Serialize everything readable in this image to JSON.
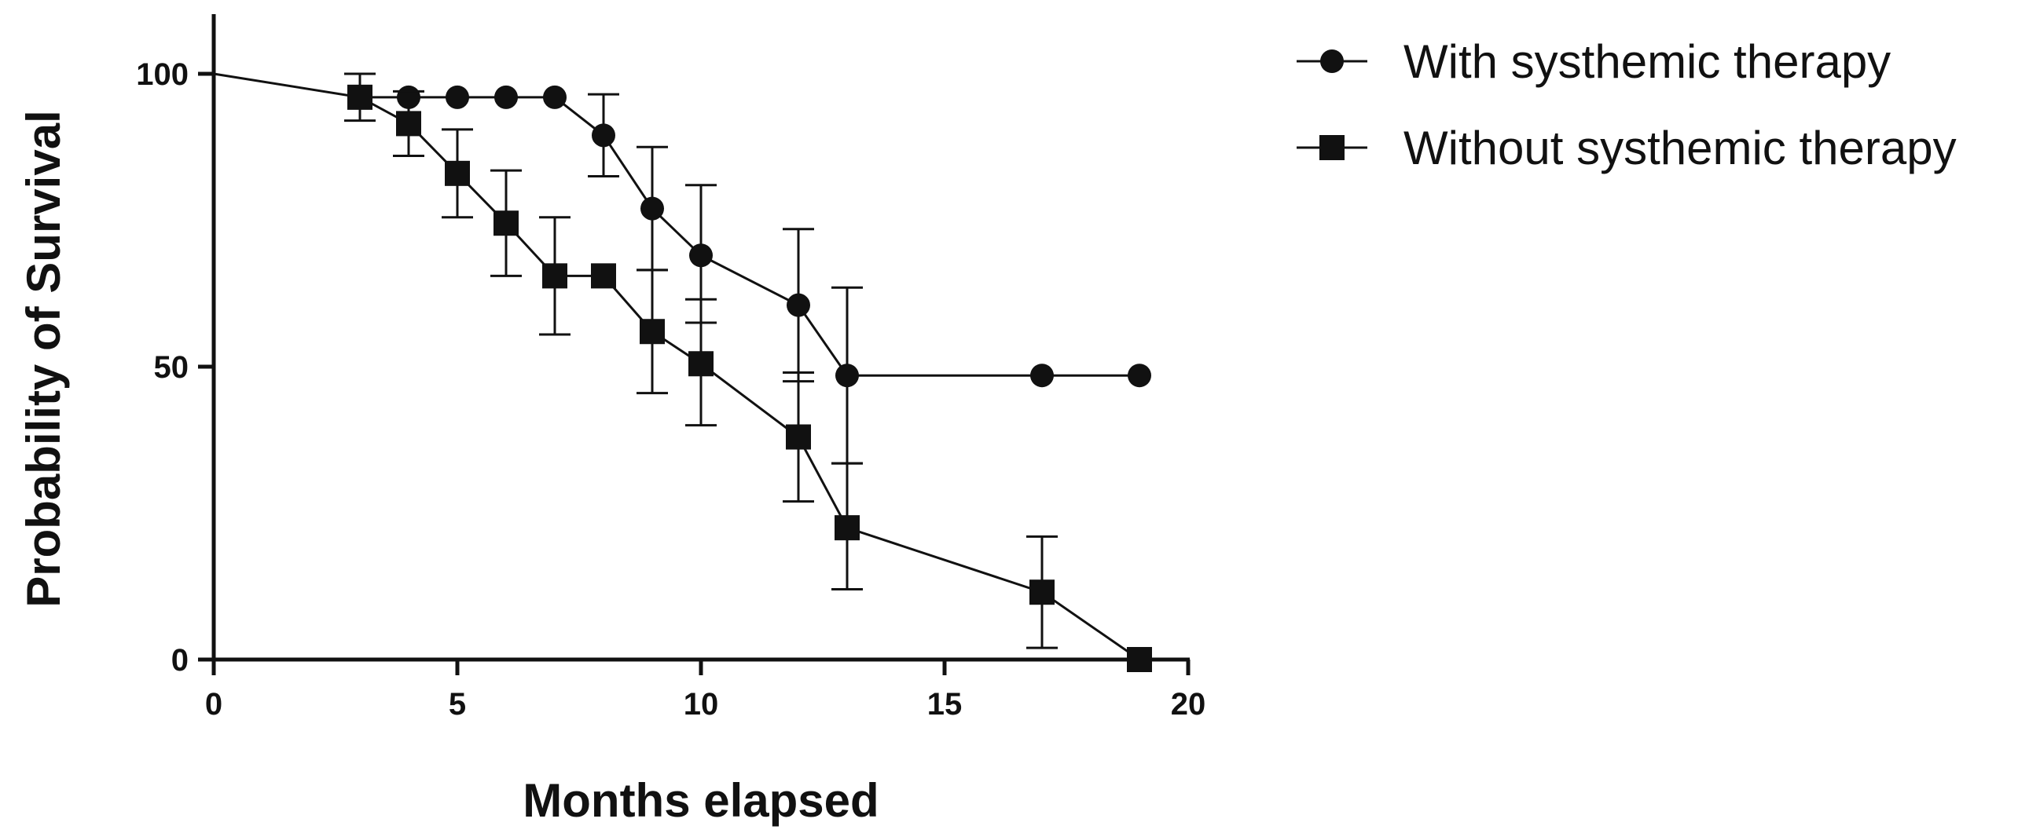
{
  "chart_data": {
    "type": "line",
    "title": "",
    "xlabel": "Months elapsed",
    "ylabel": "Probability of Survival",
    "xlim": [
      0,
      20
    ],
    "ylim": [
      0,
      100
    ],
    "x_ticks": [
      0,
      5,
      10,
      15,
      20
    ],
    "y_ticks": [
      0,
      50,
      100
    ],
    "grid": false,
    "legend_position": "top-right",
    "series": [
      {
        "name": "With systhemic therapy",
        "marker": "circle",
        "color": "#111111",
        "line_points": [
          {
            "x": 0,
            "y": 100
          },
          {
            "x": 3,
            "y": 96
          },
          {
            "x": 4,
            "y": 96
          },
          {
            "x": 5,
            "y": 96
          },
          {
            "x": 6,
            "y": 96
          },
          {
            "x": 7,
            "y": 96
          },
          {
            "x": 8,
            "y": 89.5
          },
          {
            "x": 9,
            "y": 77
          },
          {
            "x": 10,
            "y": 69
          },
          {
            "x": 12,
            "y": 60.5
          },
          {
            "x": 13,
            "y": 48.5
          },
          {
            "x": 17,
            "y": 48.5
          },
          {
            "x": 19,
            "y": 48.5
          }
        ],
        "markers": [
          {
            "x": 3,
            "y": 96,
            "lower": 92,
            "upper": 100
          },
          {
            "x": 4,
            "y": 96
          },
          {
            "x": 5,
            "y": 96
          },
          {
            "x": 6,
            "y": 96
          },
          {
            "x": 7,
            "y": 96
          },
          {
            "x": 8,
            "y": 89.5,
            "lower": 82.5,
            "upper": 96.5
          },
          {
            "x": 9,
            "y": 77,
            "lower": 66.5,
            "upper": 87.5
          },
          {
            "x": 10,
            "y": 69,
            "lower": 57.5,
            "upper": 81
          },
          {
            "x": 12,
            "y": 60.5,
            "lower": 47.5,
            "upper": 73.5
          },
          {
            "x": 13,
            "y": 48.5,
            "lower": 33.5,
            "upper": 63.5
          },
          {
            "x": 17,
            "y": 48.5
          },
          {
            "x": 19,
            "y": 48.5
          }
        ]
      },
      {
        "name": "Without systhemic therapy",
        "marker": "square",
        "color": "#111111",
        "line_points": [
          {
            "x": 3,
            "y": 96
          },
          {
            "x": 4,
            "y": 91.5
          },
          {
            "x": 5,
            "y": 83
          },
          {
            "x": 6,
            "y": 74.5
          },
          {
            "x": 7,
            "y": 65.5
          },
          {
            "x": 8,
            "y": 65.5
          },
          {
            "x": 9,
            "y": 56
          },
          {
            "x": 10,
            "y": 50.5
          },
          {
            "x": 12,
            "y": 38
          },
          {
            "x": 13,
            "y": 22.5
          },
          {
            "x": 17,
            "y": 11.5
          },
          {
            "x": 19,
            "y": 0
          }
        ],
        "markers": [
          {
            "x": 3,
            "y": 96
          },
          {
            "x": 4,
            "y": 91.5,
            "lower": 86,
            "upper": 97
          },
          {
            "x": 5,
            "y": 83,
            "lower": 75.5,
            "upper": 90.5
          },
          {
            "x": 6,
            "y": 74.5,
            "lower": 65.5,
            "upper": 83.5
          },
          {
            "x": 7,
            "y": 65.5,
            "lower": 55.5,
            "upper": 75.5
          },
          {
            "x": 8,
            "y": 65.5
          },
          {
            "x": 9,
            "y": 56,
            "lower": 45.5,
            "upper": 66.5
          },
          {
            "x": 10,
            "y": 50.5,
            "lower": 40,
            "upper": 61.5
          },
          {
            "x": 12,
            "y": 38,
            "lower": 27,
            "upper": 49
          },
          {
            "x": 13,
            "y": 22.5,
            "lower": 12,
            "upper": 33.5
          },
          {
            "x": 17,
            "y": 11.5,
            "lower": 2,
            "upper": 21
          },
          {
            "x": 19,
            "y": 0
          }
        ]
      }
    ]
  }
}
